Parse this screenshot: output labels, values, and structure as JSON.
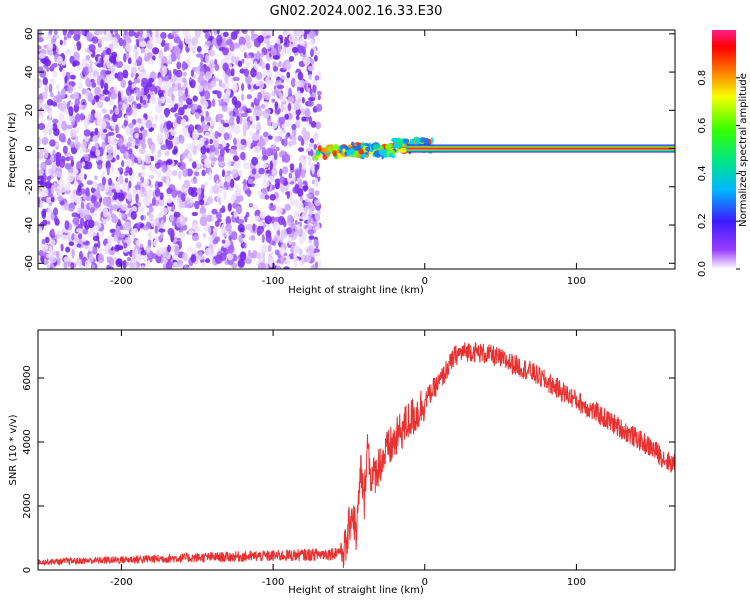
{
  "title": "GN02.2024.002.16.33.E30",
  "chart_data": [
    {
      "type": "heatmap",
      "xlabel": "Height of straight line (km)",
      "ylabel": "Frequency (Hz)",
      "xlim": [
        -255,
        165
      ],
      "ylim": [
        -63,
        62
      ],
      "xticks": [
        -200,
        -100,
        0,
        100
      ],
      "yticks": [
        -60,
        -40,
        -20,
        0,
        20,
        40,
        60
      ],
      "colorbar": {
        "label": "Normalized spectral amplitude",
        "range": [
          0,
          1
        ],
        "ticks": [
          0.0,
          0.2,
          0.4,
          0.6,
          0.8
        ]
      },
      "regions": [
        {
          "description_x_range": [
            -255,
            -72
          ],
          "frequency_range": [
            -63,
            62
          ],
          "amplitude_range": [
            0.0,
            0.15
          ]
        },
        {
          "description_x_range": [
            -72,
            5
          ],
          "frequency_range": [
            -8,
            5
          ],
          "amplitude_range": [
            0.2,
            1.0
          ]
        },
        {
          "description_x_range": [
            5,
            165
          ],
          "frequency_center": 0,
          "amplitude_peak": 1.0
        }
      ]
    },
    {
      "type": "line",
      "xlabel": "Height of straight line (km)",
      "ylabel": "SNR (10 * v/v)",
      "xlim": [
        -255,
        165
      ],
      "ylim": [
        0,
        7500
      ],
      "xticks": [
        -200,
        -100,
        0,
        100
      ],
      "yticks": [
        0,
        2000,
        4000,
        6000
      ],
      "color": "#e83232",
      "x": [
        -255,
        -230,
        -200,
        -170,
        -140,
        -110,
        -80,
        -60,
        -52,
        -48,
        -45,
        -42,
        -40,
        -38,
        -35,
        -30,
        -25,
        -20,
        -15,
        -10,
        -5,
        0,
        5,
        10,
        15,
        20,
        25,
        30,
        35,
        40,
        45,
        50,
        60,
        70,
        80,
        90,
        100,
        110,
        120,
        130,
        140,
        150,
        160,
        165
      ],
      "y": [
        250,
        280,
        320,
        360,
        400,
        430,
        470,
        520,
        700,
        1900,
        1100,
        3200,
        2000,
        4000,
        2800,
        3300,
        3700,
        4000,
        4400,
        4700,
        4900,
        5300,
        5600,
        5900,
        6300,
        6700,
        6800,
        6850,
        6800,
        6750,
        6700,
        6600,
        6400,
        6200,
        5900,
        5600,
        5300,
        5000,
        4700,
        4400,
        4100,
        3800,
        3400,
        3300
      ],
      "noise_amplitude": 280
    }
  ]
}
